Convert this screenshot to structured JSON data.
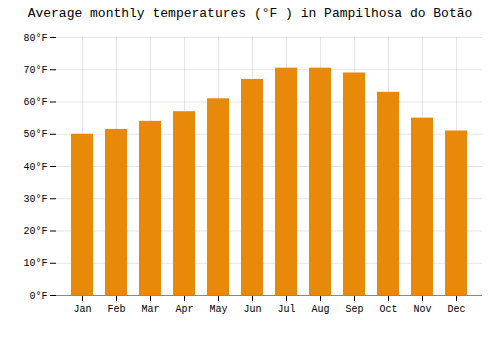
{
  "chart_data": {
    "type": "bar",
    "title": "Average monthly temperatures (°F ) in Pampilhosa do Botão",
    "categories": [
      "Jan",
      "Feb",
      "Mar",
      "Apr",
      "May",
      "Jun",
      "Jul",
      "Aug",
      "Sep",
      "Oct",
      "Nov",
      "Dec"
    ],
    "values": [
      50,
      51.5,
      54,
      57,
      61,
      67,
      70.5,
      70.5,
      69,
      63,
      55,
      51
    ],
    "color": "#E8890A",
    "ylim": [
      0,
      80
    ],
    "yticks": [
      {
        "value": 0,
        "label": "0°F"
      },
      {
        "value": 10,
        "label": "10°F"
      },
      {
        "value": 20,
        "label": "20°F"
      },
      {
        "value": 30,
        "label": "30°F"
      },
      {
        "value": 40,
        "label": "40°F"
      },
      {
        "value": 50,
        "label": "50°F"
      },
      {
        "value": 60,
        "label": "60°F"
      },
      {
        "value": 70,
        "label": "70°F"
      },
      {
        "value": 80,
        "label": "80°F"
      }
    ],
    "grid": true
  }
}
